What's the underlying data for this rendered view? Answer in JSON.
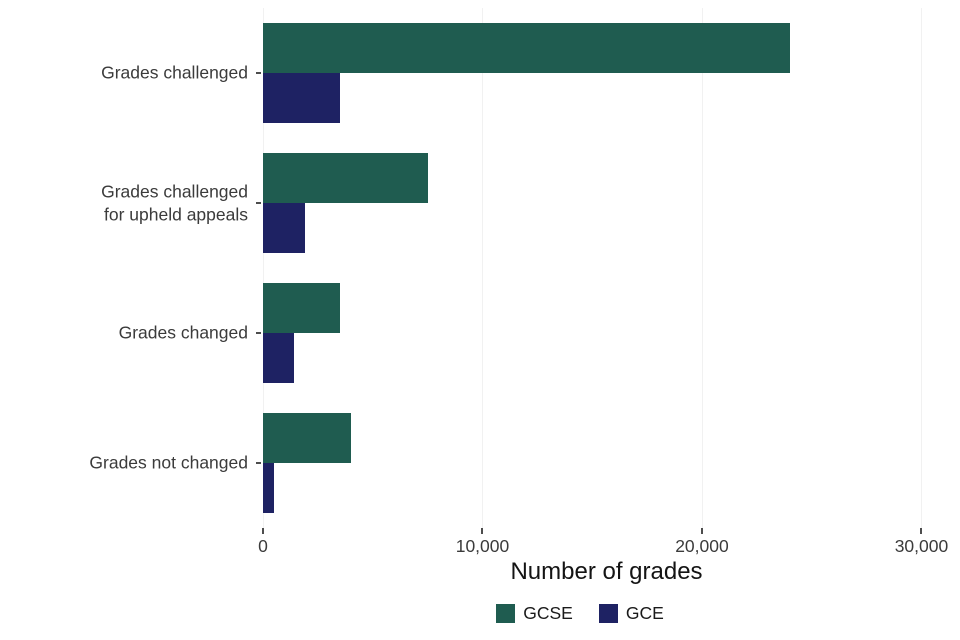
{
  "chart_data": {
    "type": "bar",
    "orientation": "horizontal",
    "title": "",
    "xlabel": "Number of grades",
    "ylabel": "",
    "categories": [
      "Grades challenged",
      "Grades challenged\nfor upheld appeals",
      "Grades changed",
      "Grades not changed"
    ],
    "series": [
      {
        "name": "GCSE",
        "color": "#1f5c50",
        "values": [
          24000,
          7500,
          3500,
          4000
        ]
      },
      {
        "name": "GCE",
        "color": "#1e2263",
        "values": [
          3500,
          1900,
          1400,
          500
        ]
      }
    ],
    "xlim": [
      0,
      31300
    ],
    "xticks": [
      0,
      10000,
      20000,
      30000
    ],
    "xtick_labels": [
      "0",
      "10,000",
      "20,000",
      "30,000"
    ],
    "grid": "faint-vertical",
    "legend_position": "bottom",
    "background": "#ffffff"
  }
}
